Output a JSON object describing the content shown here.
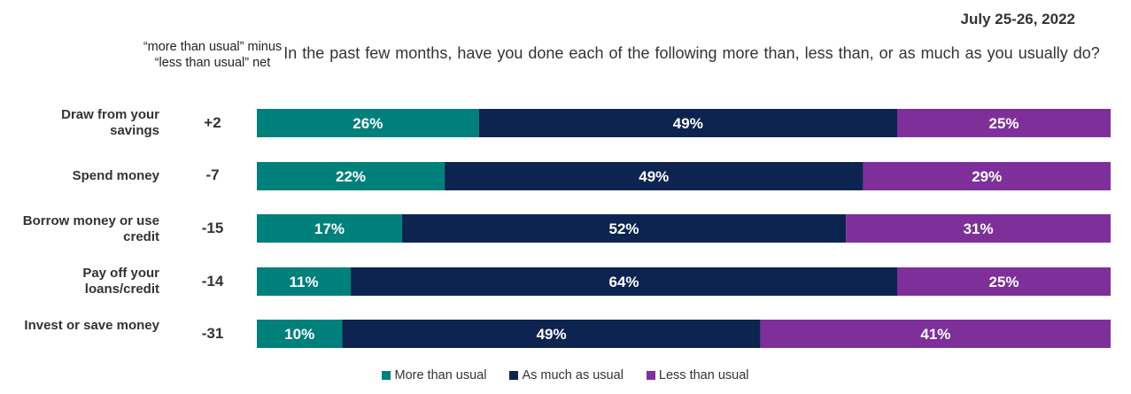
{
  "header": {
    "date": "July 25-26, 2022",
    "net_caption": "“more than usual” minus “less than usual” net",
    "question": "In the past few months, have you done each of the following more than, less than, or as much as you usually do?"
  },
  "chart_data": {
    "type": "bar",
    "orientation": "horizontal",
    "stacked": true,
    "categories": [
      "Draw from your savings",
      "Spend money",
      "Borrow money or use credit",
      "Pay off your loans/credit",
      "Invest or save money"
    ],
    "net": [
      "+2",
      "-7",
      "-15",
      "-14",
      "-31"
    ],
    "series": [
      {
        "name": "More than usual",
        "color": "#00807A",
        "values": [
          26,
          22,
          17,
          11,
          10
        ]
      },
      {
        "name": "As much as usual",
        "color": "#0D2451",
        "values": [
          49,
          49,
          52,
          64,
          49
        ]
      },
      {
        "name": "Less than usual",
        "color": "#7E2F9A",
        "values": [
          25,
          29,
          31,
          25,
          41
        ]
      }
    ],
    "value_suffix": "%",
    "xlim": [
      0,
      100
    ],
    "grid": false,
    "legend_position": "bottom"
  }
}
